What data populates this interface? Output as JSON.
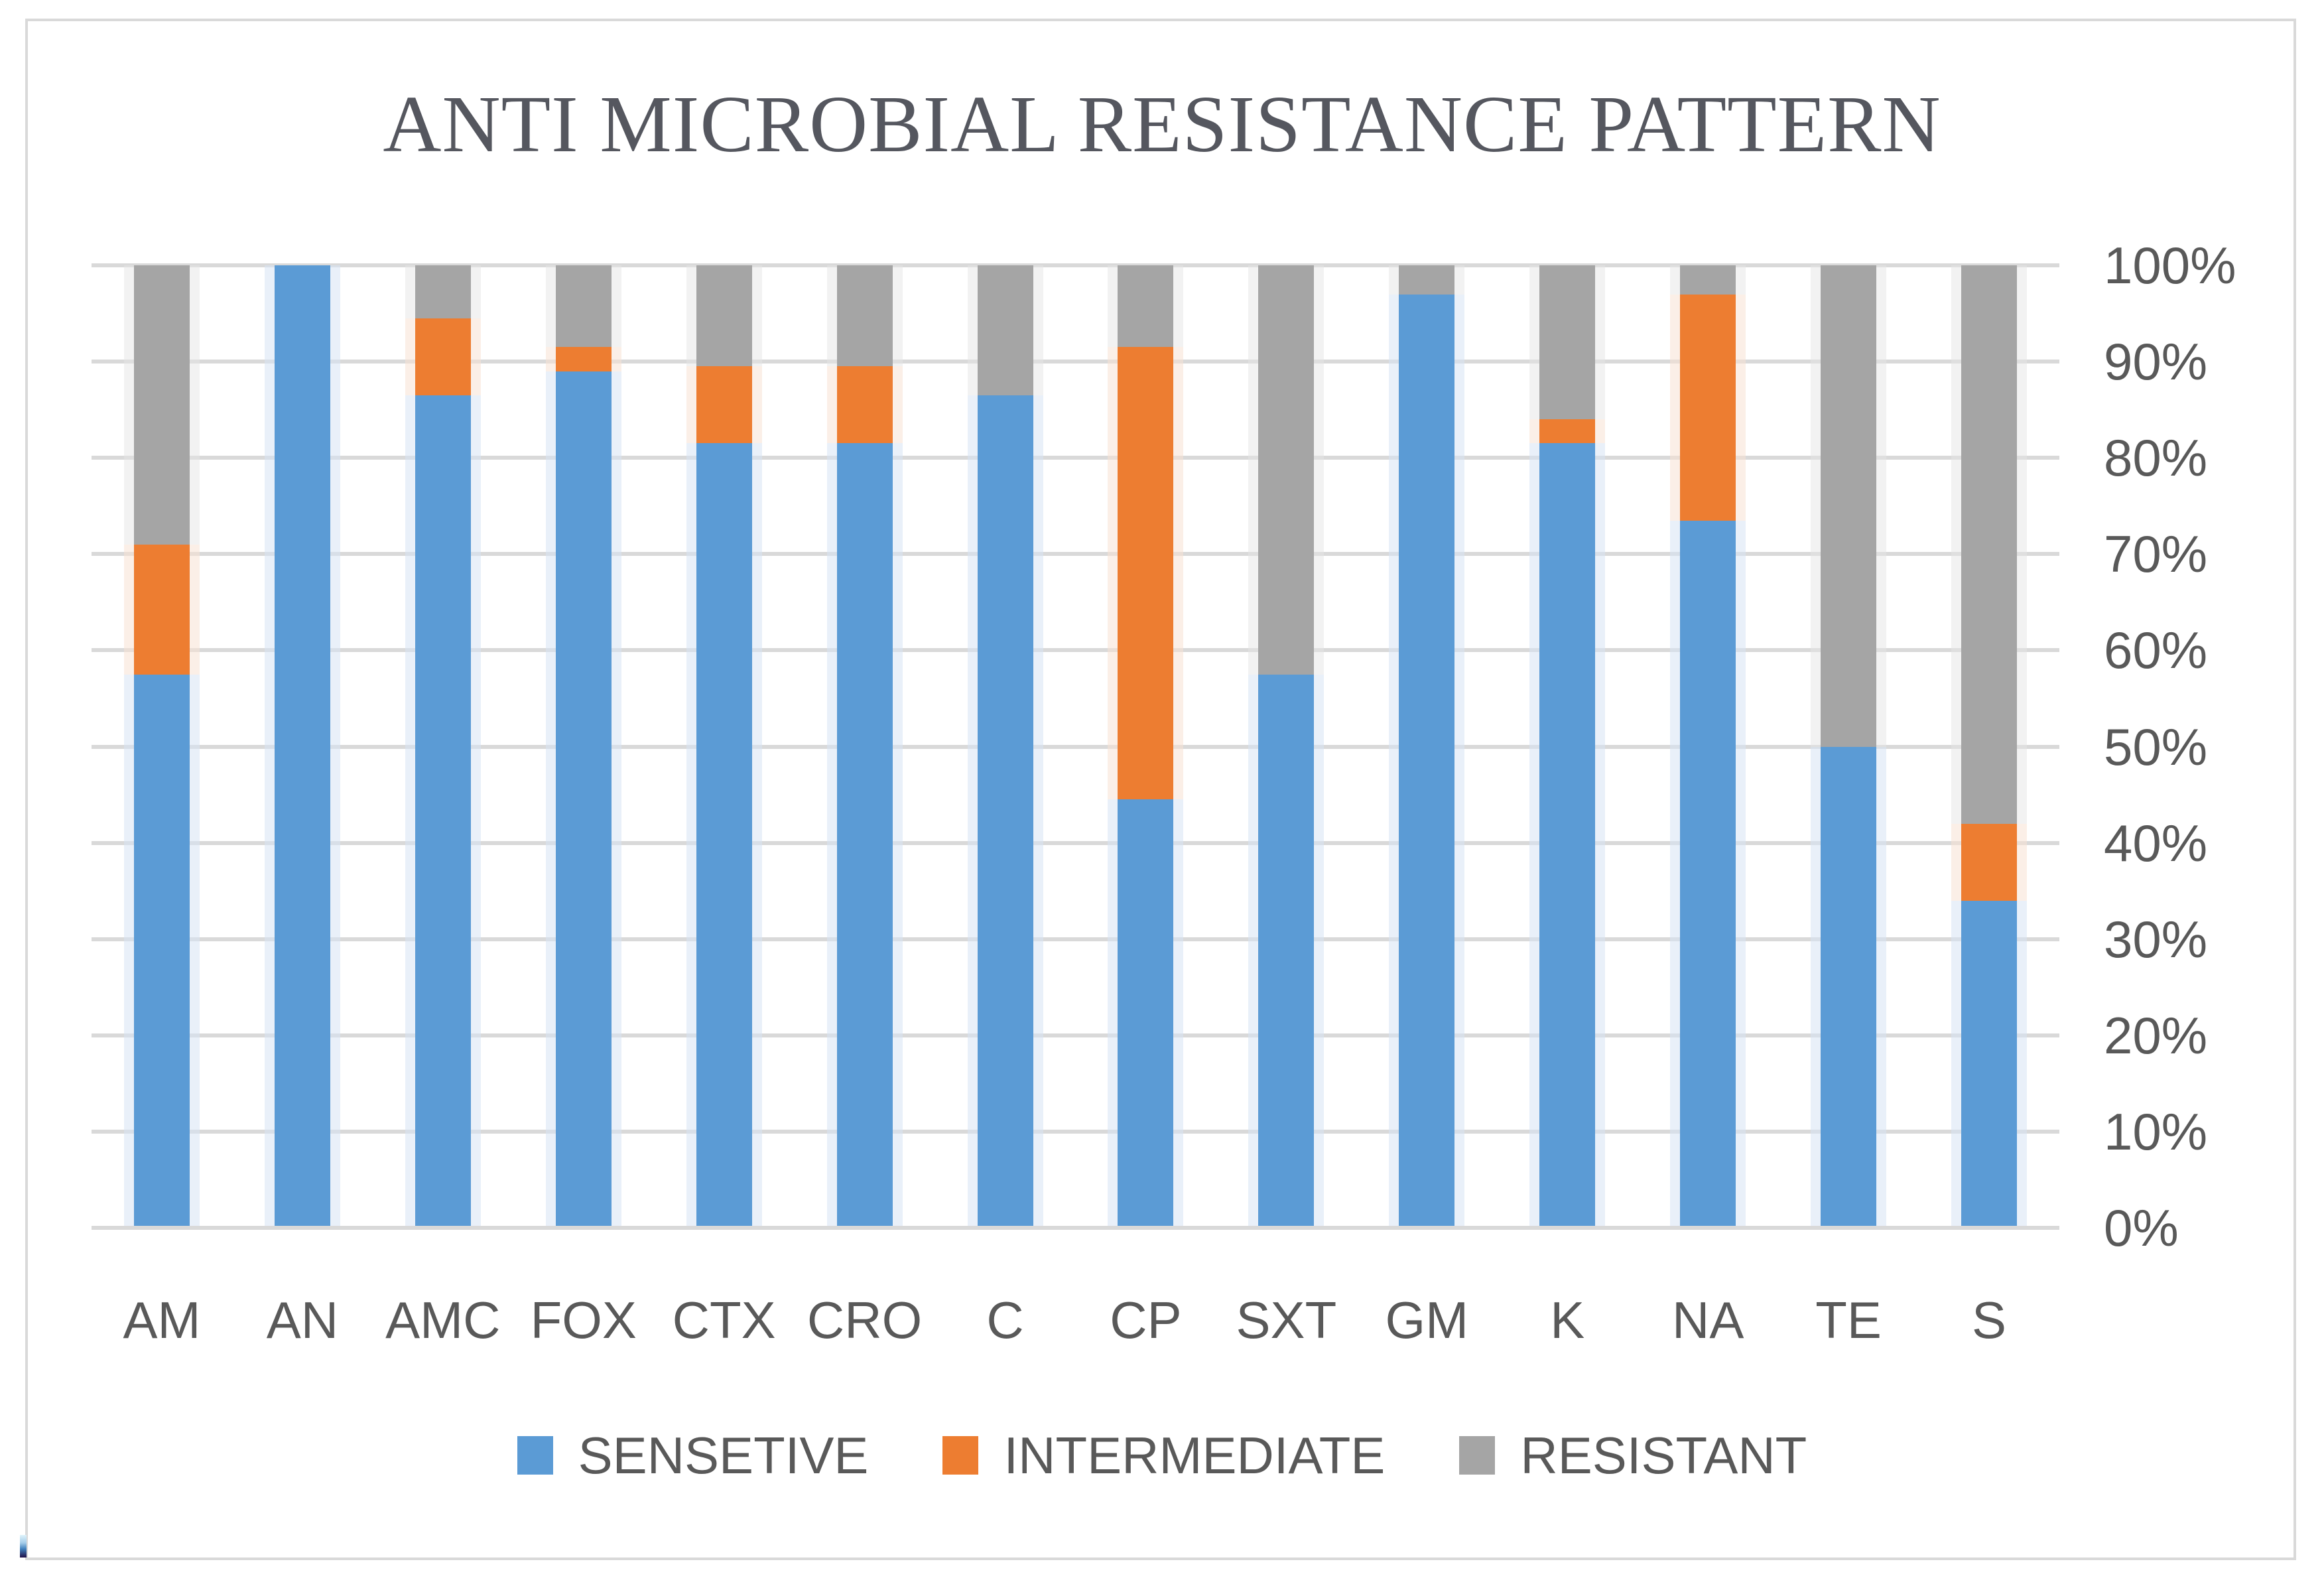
{
  "window": {
    "background": "#ffffff",
    "frame_border_color": "#d9d9d9"
  },
  "chart_data": {
    "type": "bar",
    "stacked": "percent",
    "title": "ANTI MICROBIAL RESISTANCE PATTERN",
    "title_color": "#55575f",
    "text_color": "#595959",
    "grid": {
      "horizontal": true,
      "vertical": false,
      "color": "#d9d9d9"
    },
    "categories": [
      "AM",
      "AN",
      "AMC",
      "FOX",
      "CTX",
      "CRO",
      "C",
      "CP",
      "SXT",
      "GM",
      "K",
      "NA",
      "TE",
      "S"
    ],
    "series": [
      {
        "name": "SENSETIVE",
        "color": "#5B9BD5",
        "values": [
          57.5,
          100,
          86.5,
          89,
          81.5,
          81.5,
          86.5,
          44.5,
          57.5,
          97,
          81.5,
          73.5,
          50,
          34
        ]
      },
      {
        "name": "INTERMEDIATE",
        "color": "#ED7D31",
        "values": [
          13.5,
          0,
          8,
          2.5,
          8,
          8,
          0,
          47,
          0,
          0,
          2.5,
          23.5,
          0,
          8
        ]
      },
      {
        "name": "RESISTANT",
        "color": "#A5A5A5",
        "values": [
          29,
          0,
          5.5,
          8.5,
          10.5,
          10.5,
          13.5,
          8.5,
          42.5,
          3,
          16,
          3,
          50,
          58
        ]
      }
    ],
    "y_axis": {
      "side": "right",
      "min": 0,
      "max": 100,
      "step": 10,
      "ticks": [
        "100%",
        "90%",
        "80%",
        "70%",
        "60%",
        "50%",
        "40%",
        "30%",
        "20%",
        "10%",
        "0%"
      ]
    },
    "legend": {
      "position": "bottom",
      "labels": [
        "SENSETIVE",
        "INTERMEDIATE",
        "RESISTANT"
      ]
    }
  }
}
